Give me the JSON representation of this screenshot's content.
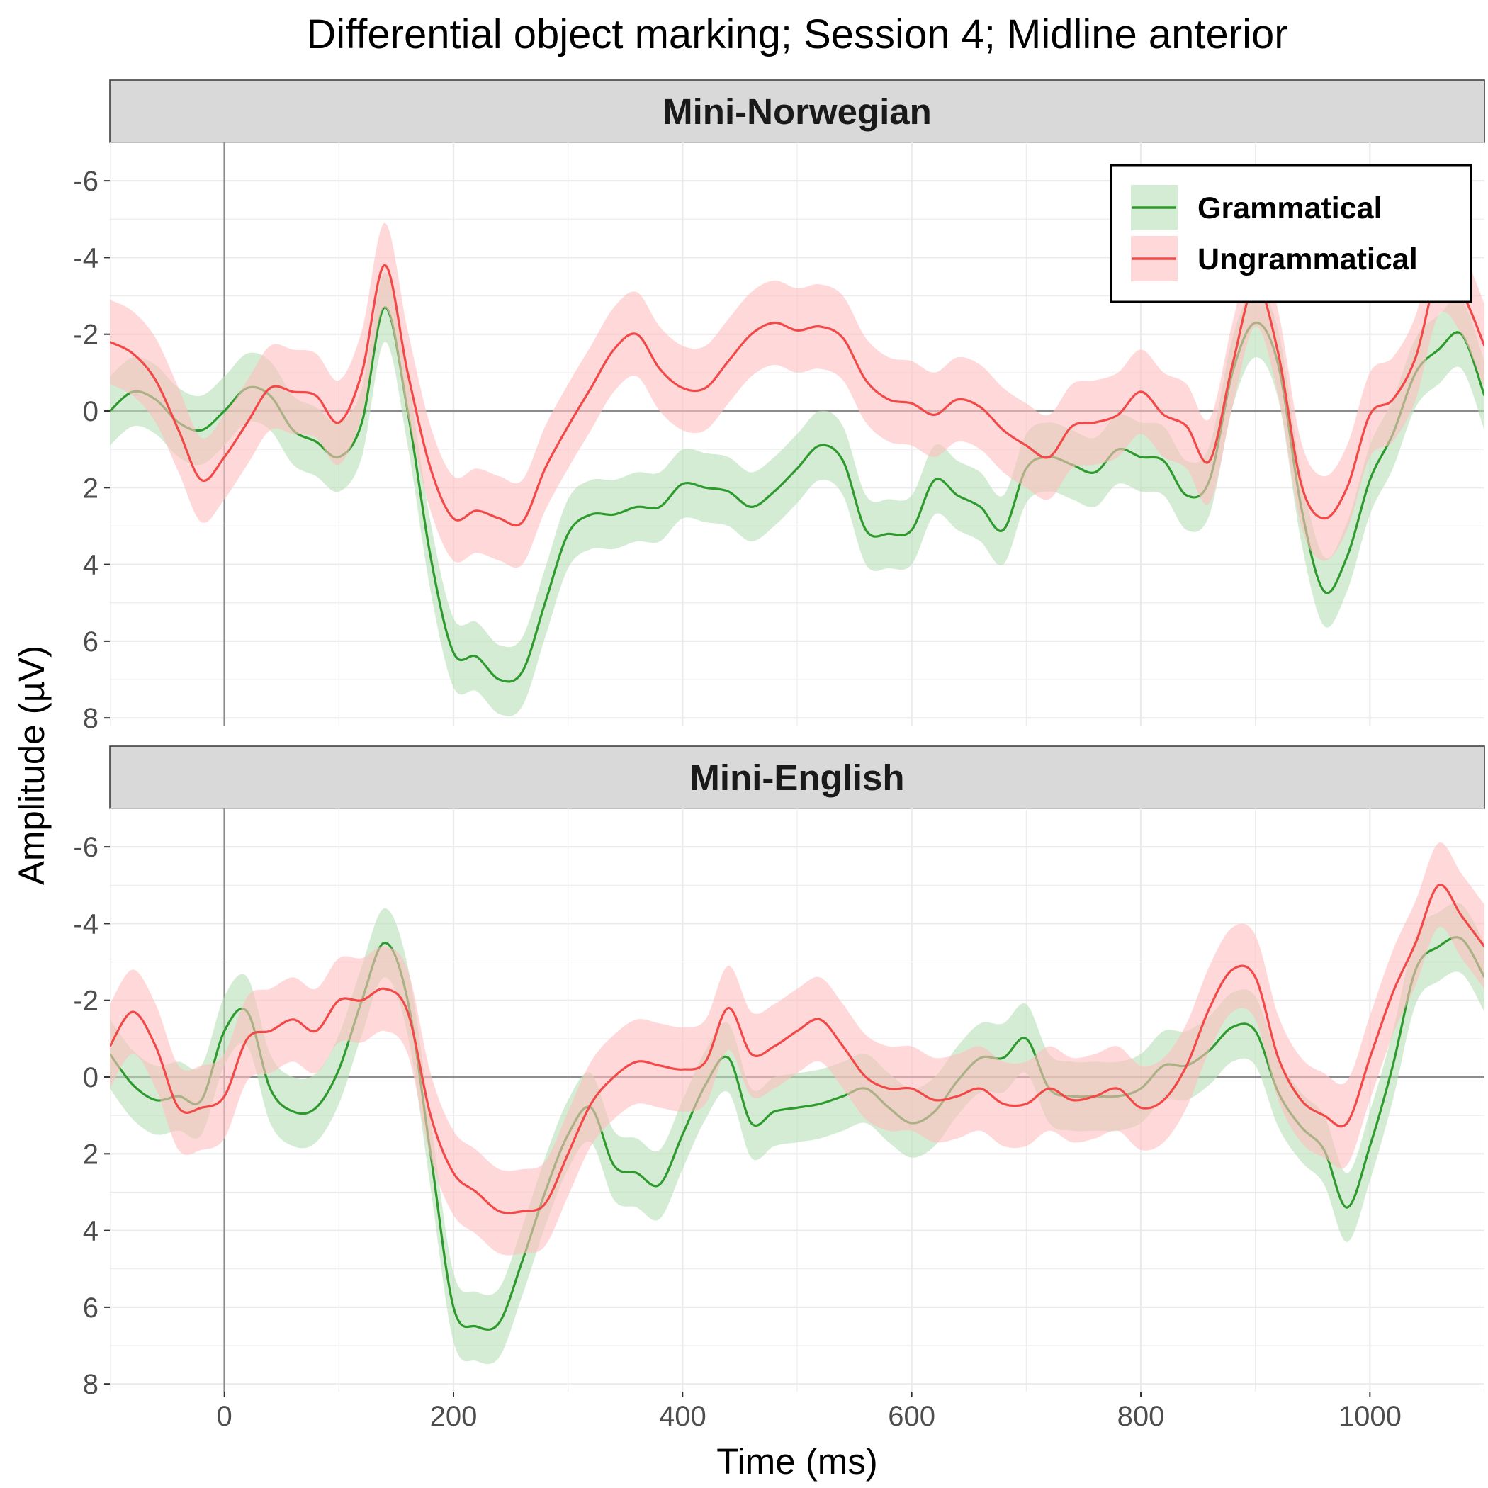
{
  "chart_data": {
    "type": "line",
    "title": "Differential object marking; Session 4; Midline anterior",
    "xlabel": "Time (ms)",
    "ylabel": "Amplitude (µV)",
    "xlim": [
      -100,
      1100
    ],
    "ylim": [
      -7.0,
      8.2
    ],
    "y_reversed": true,
    "x_ticks": [
      0,
      200,
      400,
      600,
      800,
      1000
    ],
    "x_tick_labels": [
      "0",
      "200",
      "400",
      "600",
      "800",
      "1000"
    ],
    "y_ticks": [
      -6,
      -4,
      -2,
      0,
      2,
      4,
      6,
      8
    ],
    "y_tick_labels": [
      "-6",
      "-4",
      "-2",
      "0",
      "2",
      "4",
      "6",
      "8"
    ],
    "grid": true,
    "reference_lines": {
      "x": 0,
      "y": 0
    },
    "legend": {
      "placement": "top-right of first panel",
      "entries": [
        "Grammatical",
        "Ungrammatical"
      ]
    },
    "series_colors": {
      "Grammatical": "#2e9a2e",
      "Ungrammatical": "#f24848"
    },
    "ribbon_colors": {
      "Grammatical": "#b5dfb5",
      "Ungrammatical": "#ffc0c0"
    },
    "panels": [
      {
        "strip": "Mini-Norwegian",
        "x": [
          -100,
          -80,
          -60,
          -40,
          -20,
          0,
          20,
          40,
          60,
          80,
          100,
          120,
          140,
          160,
          180,
          200,
          220,
          240,
          260,
          280,
          300,
          320,
          340,
          360,
          380,
          400,
          420,
          440,
          460,
          480,
          500,
          520,
          540,
          560,
          580,
          600,
          620,
          640,
          660,
          680,
          700,
          720,
          740,
          760,
          780,
          800,
          820,
          840,
          860,
          880,
          900,
          920,
          940,
          960,
          980,
          1000,
          1020,
          1040,
          1060,
          1080,
          1100
        ],
        "series": [
          {
            "name": "Grammatical",
            "values": [
              0.0,
              -0.5,
              -0.3,
              0.3,
              0.5,
              0.0,
              -0.6,
              -0.4,
              0.5,
              0.8,
              1.2,
              0.3,
              -2.7,
              0.0,
              3.8,
              6.3,
              6.4,
              7.0,
              6.8,
              5.0,
              3.2,
              2.7,
              2.7,
              2.5,
              2.5,
              1.9,
              2.0,
              2.1,
              2.5,
              2.1,
              1.5,
              0.9,
              1.3,
              3.1,
              3.2,
              3.1,
              1.8,
              2.2,
              2.5,
              3.1,
              1.5,
              1.2,
              1.4,
              1.6,
              1.0,
              1.2,
              1.3,
              2.2,
              1.8,
              -1.0,
              -2.3,
              -1.2,
              2.5,
              4.7,
              3.8,
              1.8,
              0.6,
              -1.0,
              -1.6,
              -2.0,
              -0.4
            ],
            "ribbon": 0.9
          },
          {
            "name": "Ungrammatical",
            "values": [
              -1.8,
              -1.5,
              -0.8,
              0.5,
              1.8,
              1.2,
              0.3,
              -0.6,
              -0.5,
              -0.4,
              0.3,
              -1.0,
              -3.8,
              -1.0,
              1.5,
              2.8,
              2.6,
              2.8,
              2.9,
              1.5,
              0.4,
              -0.6,
              -1.6,
              -2.0,
              -1.1,
              -0.6,
              -0.6,
              -1.3,
              -2.0,
              -2.3,
              -2.1,
              -2.2,
              -1.9,
              -0.8,
              -0.3,
              -0.2,
              0.1,
              -0.3,
              -0.1,
              0.5,
              0.9,
              1.2,
              0.4,
              0.3,
              0.1,
              -0.5,
              0.1,
              0.4,
              1.3,
              -1.2,
              -3.3,
              -1.5,
              1.9,
              2.8,
              2.0,
              0.1,
              -0.3,
              -1.4,
              -3.6,
              -3.1,
              -1.7
            ],
            "ribbon": 1.1
          }
        ]
      },
      {
        "strip": "Mini-English",
        "x": [
          -100,
          -80,
          -60,
          -40,
          -20,
          0,
          20,
          40,
          60,
          80,
          100,
          120,
          140,
          160,
          180,
          200,
          220,
          240,
          260,
          280,
          300,
          320,
          340,
          360,
          380,
          400,
          420,
          440,
          460,
          480,
          500,
          520,
          540,
          560,
          580,
          600,
          620,
          640,
          660,
          680,
          700,
          720,
          740,
          760,
          780,
          800,
          820,
          840,
          860,
          880,
          900,
          920,
          940,
          960,
          980,
          1000,
          1020,
          1040,
          1060,
          1080,
          1100
        ],
        "series": [
          {
            "name": "Grammatical",
            "values": [
              -0.6,
              0.2,
              0.6,
              0.5,
              0.6,
              -1.2,
              -1.7,
              0.3,
              0.9,
              0.8,
              -0.2,
              -2.0,
              -3.5,
              -2.0,
              2.0,
              6.0,
              6.5,
              6.4,
              4.8,
              3.0,
              1.5,
              0.8,
              2.3,
              2.5,
              2.8,
              1.5,
              0.2,
              -0.5,
              1.2,
              0.9,
              0.8,
              0.7,
              0.5,
              0.3,
              0.8,
              1.2,
              0.9,
              0.1,
              -0.5,
              -0.5,
              -1.0,
              0.3,
              0.5,
              0.5,
              0.5,
              0.3,
              -0.3,
              -0.3,
              -0.7,
              -1.3,
              -1.2,
              0.4,
              1.3,
              1.9,
              3.4,
              1.8,
              -0.3,
              -2.8,
              -3.4,
              -3.6,
              -2.6
            ],
            "ribbon": 0.9
          },
          {
            "name": "Ungrammatical",
            "values": [
              -0.8,
              -1.7,
              -0.8,
              0.8,
              0.8,
              0.5,
              -1.0,
              -1.2,
              -1.5,
              -1.2,
              -2.0,
              -2.0,
              -2.3,
              -1.7,
              1.0,
              2.5,
              3.0,
              3.5,
              3.5,
              3.3,
              2.0,
              0.7,
              0.0,
              -0.4,
              -0.3,
              -0.2,
              -0.4,
              -1.8,
              -0.6,
              -0.8,
              -1.2,
              -1.5,
              -0.8,
              0.0,
              0.3,
              0.3,
              0.6,
              0.5,
              0.3,
              0.7,
              0.7,
              0.3,
              0.6,
              0.5,
              0.3,
              0.8,
              0.6,
              -0.3,
              -1.8,
              -2.8,
              -2.6,
              -0.5,
              0.6,
              1.0,
              1.2,
              -0.5,
              -2.2,
              -3.5,
              -5.0,
              -4.2,
              -3.4
            ],
            "ribbon": 1.1
          }
        ]
      }
    ]
  }
}
